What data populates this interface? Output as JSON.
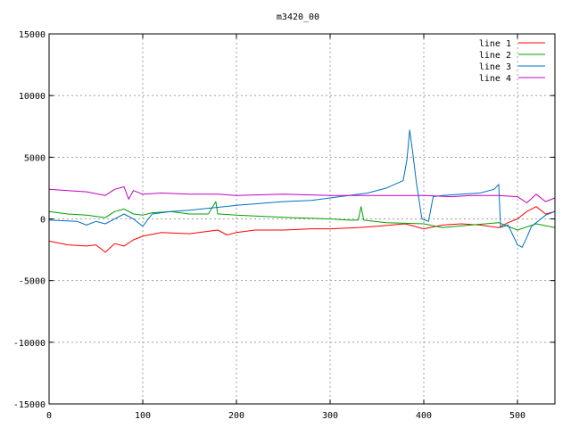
{
  "chart_data": {
    "type": "line",
    "title": "m3420_00",
    "xlim": [
      0,
      540
    ],
    "ylim": [
      -15000,
      15000
    ],
    "xticks": [
      0,
      100,
      200,
      300,
      400,
      500
    ],
    "yticks": [
      -15000,
      -10000,
      -5000,
      0,
      5000,
      10000,
      15000
    ],
    "grid": true,
    "legend_position": "top-right",
    "series": [
      {
        "name": "line 1",
        "color": "#ff0000",
        "x": [
          0,
          20,
          40,
          50,
          60,
          70,
          80,
          90,
          100,
          120,
          150,
          180,
          190,
          200,
          220,
          250,
          280,
          300,
          330,
          350,
          380,
          400,
          420,
          440,
          460,
          480,
          490,
          500,
          510,
          520,
          530,
          540
        ],
        "y": [
          -1800,
          -2100,
          -2200,
          -2100,
          -2700,
          -2000,
          -2200,
          -1700,
          -1400,
          -1100,
          -1200,
          -900,
          -1300,
          -1100,
          -900,
          -900,
          -800,
          -800,
          -700,
          -600,
          -400,
          -800,
          -500,
          -400,
          -500,
          -700,
          -300,
          0,
          600,
          1000,
          400,
          600
        ]
      },
      {
        "name": "line 2",
        "color": "#00a000",
        "x": [
          0,
          20,
          40,
          60,
          70,
          80,
          90,
          100,
          110,
          130,
          150,
          170,
          178,
          180,
          182,
          200,
          230,
          260,
          300,
          320,
          330,
          333,
          336,
          360,
          400,
          420,
          450,
          480,
          500,
          520,
          540
        ],
        "y": [
          600,
          400,
          300,
          100,
          600,
          800,
          400,
          300,
          500,
          600,
          400,
          400,
          1400,
          400,
          400,
          300,
          200,
          100,
          0,
          -100,
          -100,
          1000,
          -100,
          -300,
          -400,
          -700,
          -500,
          -300,
          -900,
          -400,
          -700
        ]
      },
      {
        "name": "line 3",
        "color": "#0070c0",
        "x": [
          0,
          30,
          40,
          50,
          60,
          80,
          90,
          100,
          110,
          130,
          150,
          200,
          250,
          280,
          300,
          320,
          340,
          360,
          378,
          382,
          385,
          388,
          392,
          398,
          405,
          410,
          420,
          440,
          460,
          475,
          480,
          482,
          490,
          500,
          505,
          510,
          515,
          520,
          530,
          540
        ],
        "y": [
          -100,
          -200,
          -500,
          -200,
          -400,
          400,
          0,
          -600,
          400,
          600,
          700,
          1100,
          1400,
          1500,
          1700,
          1900,
          2100,
          2500,
          3100,
          4800,
          7200,
          5500,
          3000,
          0,
          -200,
          1800,
          1900,
          2000,
          2100,
          2400,
          2800,
          -700,
          -500,
          -2100,
          -2300,
          -1500,
          -600,
          -300,
          300,
          600
        ]
      },
      {
        "name": "line 4",
        "color": "#c000c0",
        "x": [
          0,
          20,
          40,
          60,
          70,
          80,
          85,
          90,
          100,
          120,
          150,
          180,
          200,
          250,
          300,
          350,
          400,
          430,
          450,
          470,
          480,
          500,
          510,
          520,
          530,
          540
        ],
        "y": [
          2400,
          2300,
          2200,
          1900,
          2400,
          2600,
          1600,
          2300,
          2000,
          2100,
          2000,
          2000,
          1900,
          2000,
          1900,
          1900,
          1900,
          1800,
          1900,
          1900,
          1900,
          1800,
          1300,
          2000,
          1400,
          1700
        ]
      }
    ]
  }
}
